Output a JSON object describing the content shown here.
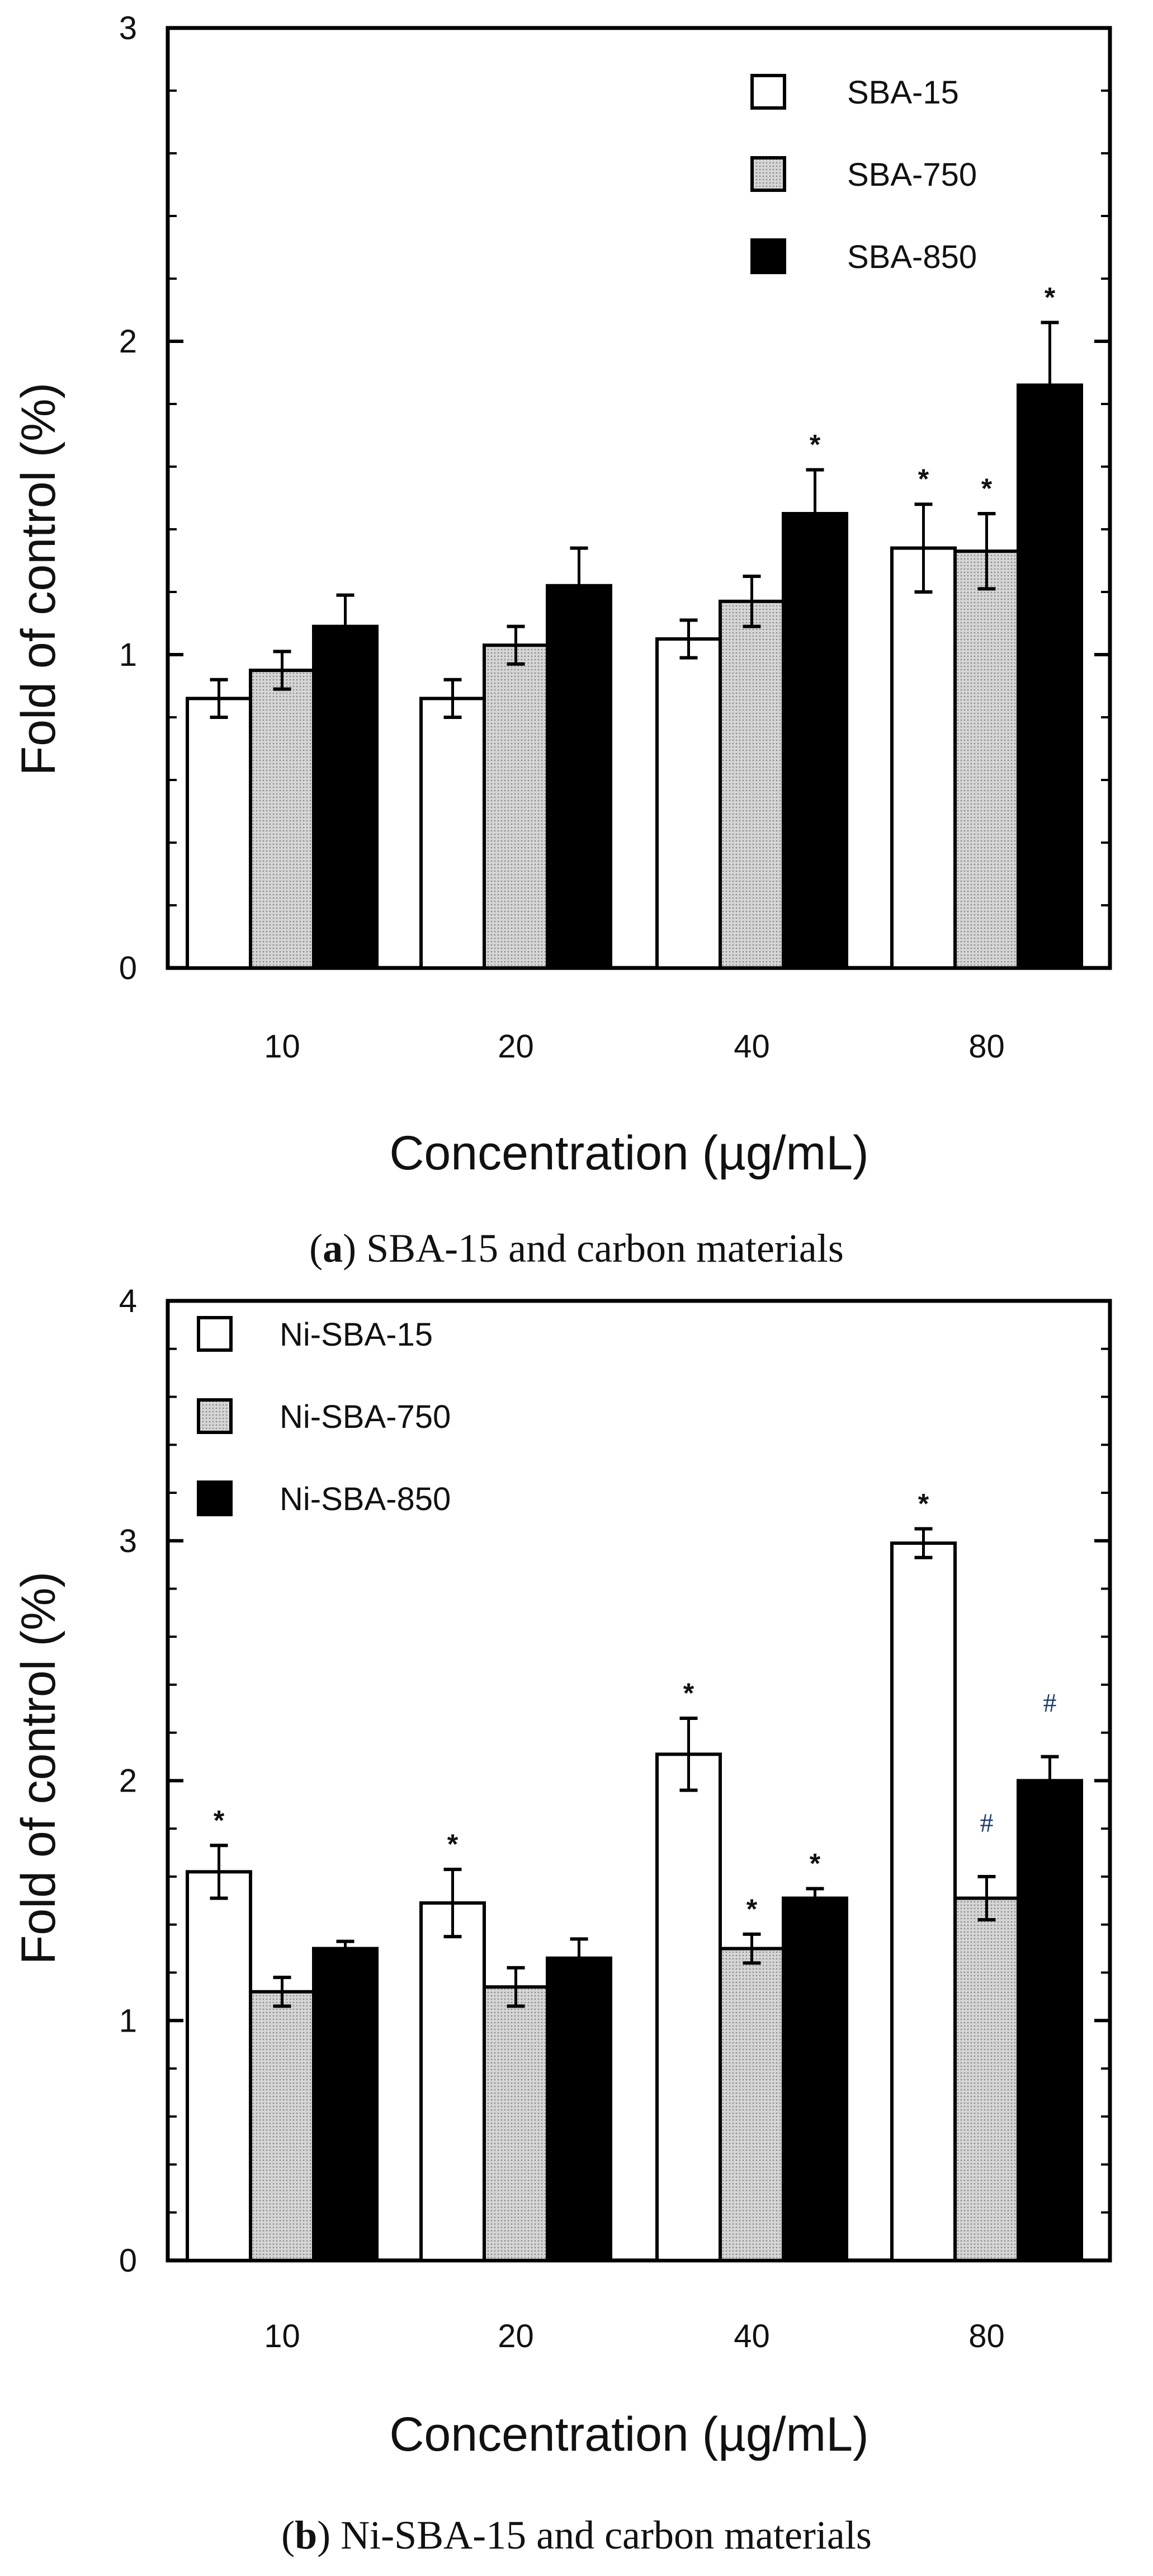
{
  "chart_data": [
    {
      "type": "bar",
      "id": "a",
      "caption_letter": "a",
      "caption_text": "SBA-15 and carbon materials",
      "xlabel": "Concentration (µg/mL)",
      "ylabel": "Fold of control (%)",
      "ylim": [
        0,
        3
      ],
      "yticks": [
        "0",
        "1",
        "2",
        "3"
      ],
      "categories": [
        "10",
        "20",
        "40",
        "80"
      ],
      "legend_position": "top-right",
      "series": [
        {
          "name": "SBA-15",
          "fill": "white",
          "values": [
            0.86,
            0.86,
            1.05,
            1.34
          ],
          "errors": [
            0.06,
            0.06,
            0.06,
            0.14
          ],
          "marks": [
            "",
            "",
            "",
            "*"
          ]
        },
        {
          "name": "SBA-750",
          "fill": "gray",
          "values": [
            0.95,
            1.03,
            1.17,
            1.33
          ],
          "errors": [
            0.06,
            0.06,
            0.08,
            0.12
          ],
          "marks": [
            "",
            "",
            "",
            "*"
          ]
        },
        {
          "name": "SBA-850",
          "fill": "black",
          "values": [
            1.09,
            1.22,
            1.45,
            1.86
          ],
          "errors": [
            0.1,
            0.12,
            0.14,
            0.2
          ],
          "marks": [
            "",
            "",
            "*",
            "*"
          ]
        }
      ]
    },
    {
      "type": "bar",
      "id": "b",
      "caption_letter": "b",
      "caption_text": "Ni-SBA-15 and carbon materials",
      "xlabel": "Concentration (µg/mL)",
      "ylabel": "Fold of control (%)",
      "ylim": [
        0,
        4
      ],
      "yticks": [
        "0",
        "1",
        "2",
        "3",
        "4"
      ],
      "categories": [
        "10",
        "20",
        "40",
        "80"
      ],
      "legend_position": "top-left",
      "series": [
        {
          "name": "Ni-SBA-15",
          "fill": "white",
          "values": [
            1.62,
            1.49,
            2.11,
            2.99
          ],
          "errors": [
            0.11,
            0.14,
            0.15,
            0.06
          ],
          "marks": [
            "*",
            "*",
            "*",
            "*"
          ]
        },
        {
          "name": "Ni-SBA-750",
          "fill": "gray",
          "values": [
            1.12,
            1.14,
            1.3,
            1.51
          ],
          "errors": [
            0.06,
            0.08,
            0.06,
            0.09
          ],
          "marks": [
            "",
            "",
            "*",
            "#"
          ]
        },
        {
          "name": "Ni-SBA-850",
          "fill": "black",
          "values": [
            1.3,
            1.26,
            1.51,
            2.0
          ],
          "errors": [
            0.03,
            0.08,
            0.04,
            0.1
          ],
          "marks": [
            "",
            "",
            "*",
            "#"
          ]
        }
      ]
    }
  ],
  "colors": {
    "white_bar": "#ffffff",
    "gray_bar": "#c8c8c8",
    "black_bar": "#000000",
    "hash_mark": "#1d3a6a"
  }
}
